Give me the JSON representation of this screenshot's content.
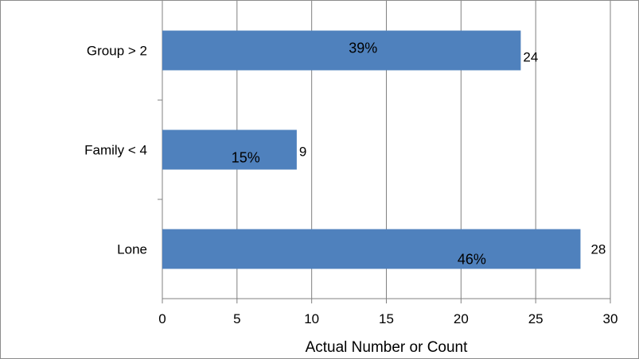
{
  "chart_data": {
    "type": "bar",
    "orientation": "horizontal",
    "categories": [
      "Group > 2",
      "Family < 4",
      "Lone"
    ],
    "values": [
      24,
      9,
      28
    ],
    "percent_labels": [
      "39%",
      "15%",
      "46%"
    ],
    "value_labels": [
      "24",
      "9",
      "28"
    ],
    "title": "",
    "xlabel": "Actual Number or Count",
    "ylabel": "",
    "xlim": [
      0,
      30
    ],
    "x_ticks": [
      "0",
      "5",
      "10",
      "15",
      "20",
      "25",
      "30"
    ],
    "grid": "vertical major gridlines",
    "legend": "none",
    "colors": {
      "bar": "#4f81bd",
      "grid": "#808080",
      "axis": "#808080"
    }
  }
}
